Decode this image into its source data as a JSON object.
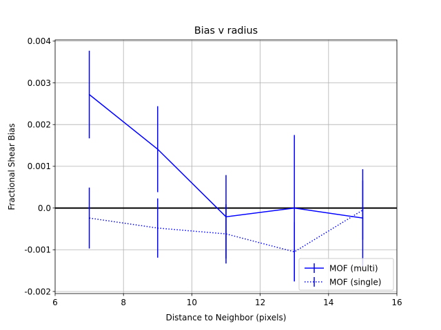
{
  "chart_data": {
    "type": "line",
    "title": "Bias v radius",
    "xlabel": "Distance to Neighbor (pixels)",
    "ylabel": "Fractional Shear Bias",
    "xlim": [
      6,
      16
    ],
    "ylim": [
      -0.00205,
      0.00403
    ],
    "x_ticks": [
      6,
      8,
      10,
      12,
      14,
      16
    ],
    "x_tick_labels": [
      "6",
      "8",
      "10",
      "12",
      "14",
      "16"
    ],
    "y_ticks": [
      -0.002,
      -0.001,
      0.0,
      0.001,
      0.002,
      0.003,
      0.004
    ],
    "y_tick_labels": [
      "-0.002",
      "-0.001",
      "0.0",
      "0.001",
      "0.002",
      "0.003",
      "0.004"
    ],
    "grid": true,
    "reference_line": 0,
    "legend_position": "lower-right",
    "series": [
      {
        "name": "MOF (multi)",
        "style": "solid",
        "color": "#0000ff",
        "x": [
          7,
          9,
          11,
          13,
          15
        ],
        "y": [
          0.00272,
          0.00141,
          -0.00021,
          0.0,
          -0.00024
        ],
        "yerr": [
          0.00105,
          0.00103,
          0.001,
          0.00175,
          0.00117
        ]
      },
      {
        "name": "MOF (single)",
        "style": "dotted",
        "color": "#0000ff",
        "x": [
          7,
          9,
          11,
          13,
          15
        ],
        "y": [
          -0.00024,
          -0.00048,
          -0.00062,
          -0.00105,
          -5e-05
        ],
        "yerr": [
          0.00073,
          0.00071,
          0.00071,
          0.00071,
          0.00071
        ]
      }
    ]
  }
}
